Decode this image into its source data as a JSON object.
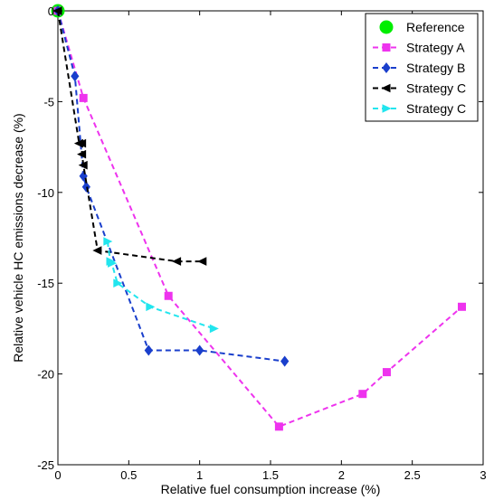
{
  "chart_data": {
    "type": "line",
    "xlabel": "Relative fuel consumption increase (%)",
    "ylabel": "Relative vehicle HC emissions decrease (%)",
    "xlim": [
      0,
      3
    ],
    "ylim": [
      -25,
      0
    ],
    "xticks": [
      0,
      0.5,
      1,
      1.5,
      2,
      2.5,
      3
    ],
    "xtick_labels": [
      "0",
      "0.5",
      "1",
      "1.5",
      "2",
      "2.5",
      "3"
    ],
    "yticks": [
      0,
      -5,
      -10,
      -15,
      -20,
      -25
    ],
    "ytick_labels": [
      "0",
      "-5",
      "-10",
      "-15",
      "-20",
      "-25"
    ],
    "grid": false,
    "legend_position": "top-right",
    "series": [
      {
        "name": "Reference",
        "color": "#00ee00",
        "marker": "circle",
        "line": "none",
        "x": [
          0
        ],
        "y": [
          0
        ]
      },
      {
        "name": "Strategy A",
        "color": "#ee33ee",
        "marker": "square",
        "line": "dashed",
        "x": [
          0,
          0.18,
          0.78,
          1.56,
          2.15,
          2.32,
          2.85
        ],
        "y": [
          0,
          -4.8,
          -15.7,
          -22.9,
          -21.1,
          -19.9,
          -16.3
        ]
      },
      {
        "name": "Strategy B",
        "color": "#1a3fcc",
        "marker": "diamond",
        "line": "dashed",
        "x": [
          0,
          0.12,
          0.18,
          0.2,
          0.64,
          1.0,
          1.6
        ],
        "y": [
          0,
          -3.6,
          -9.1,
          -9.7,
          -18.7,
          -18.7,
          -19.3
        ]
      },
      {
        "name": "Strategy C",
        "color": "#000000",
        "marker": "triangle-left",
        "line": "dashed",
        "x": [
          0,
          0.15,
          0.17,
          0.17,
          0.18,
          0.28,
          0.84,
          1.02
        ],
        "y": [
          0,
          -7.3,
          -7.3,
          -7.9,
          -8.5,
          -13.2,
          -13.8,
          -13.8
        ]
      },
      {
        "name": "Strategy C",
        "color": "#22e5ee",
        "marker": "triangle-right",
        "line": "dashed",
        "x": [
          0.35,
          0.37,
          0.38,
          0.42,
          0.65,
          1.1
        ],
        "y": [
          -12.7,
          -13.8,
          -13.9,
          -15.0,
          -16.3,
          -17.5
        ]
      }
    ]
  }
}
